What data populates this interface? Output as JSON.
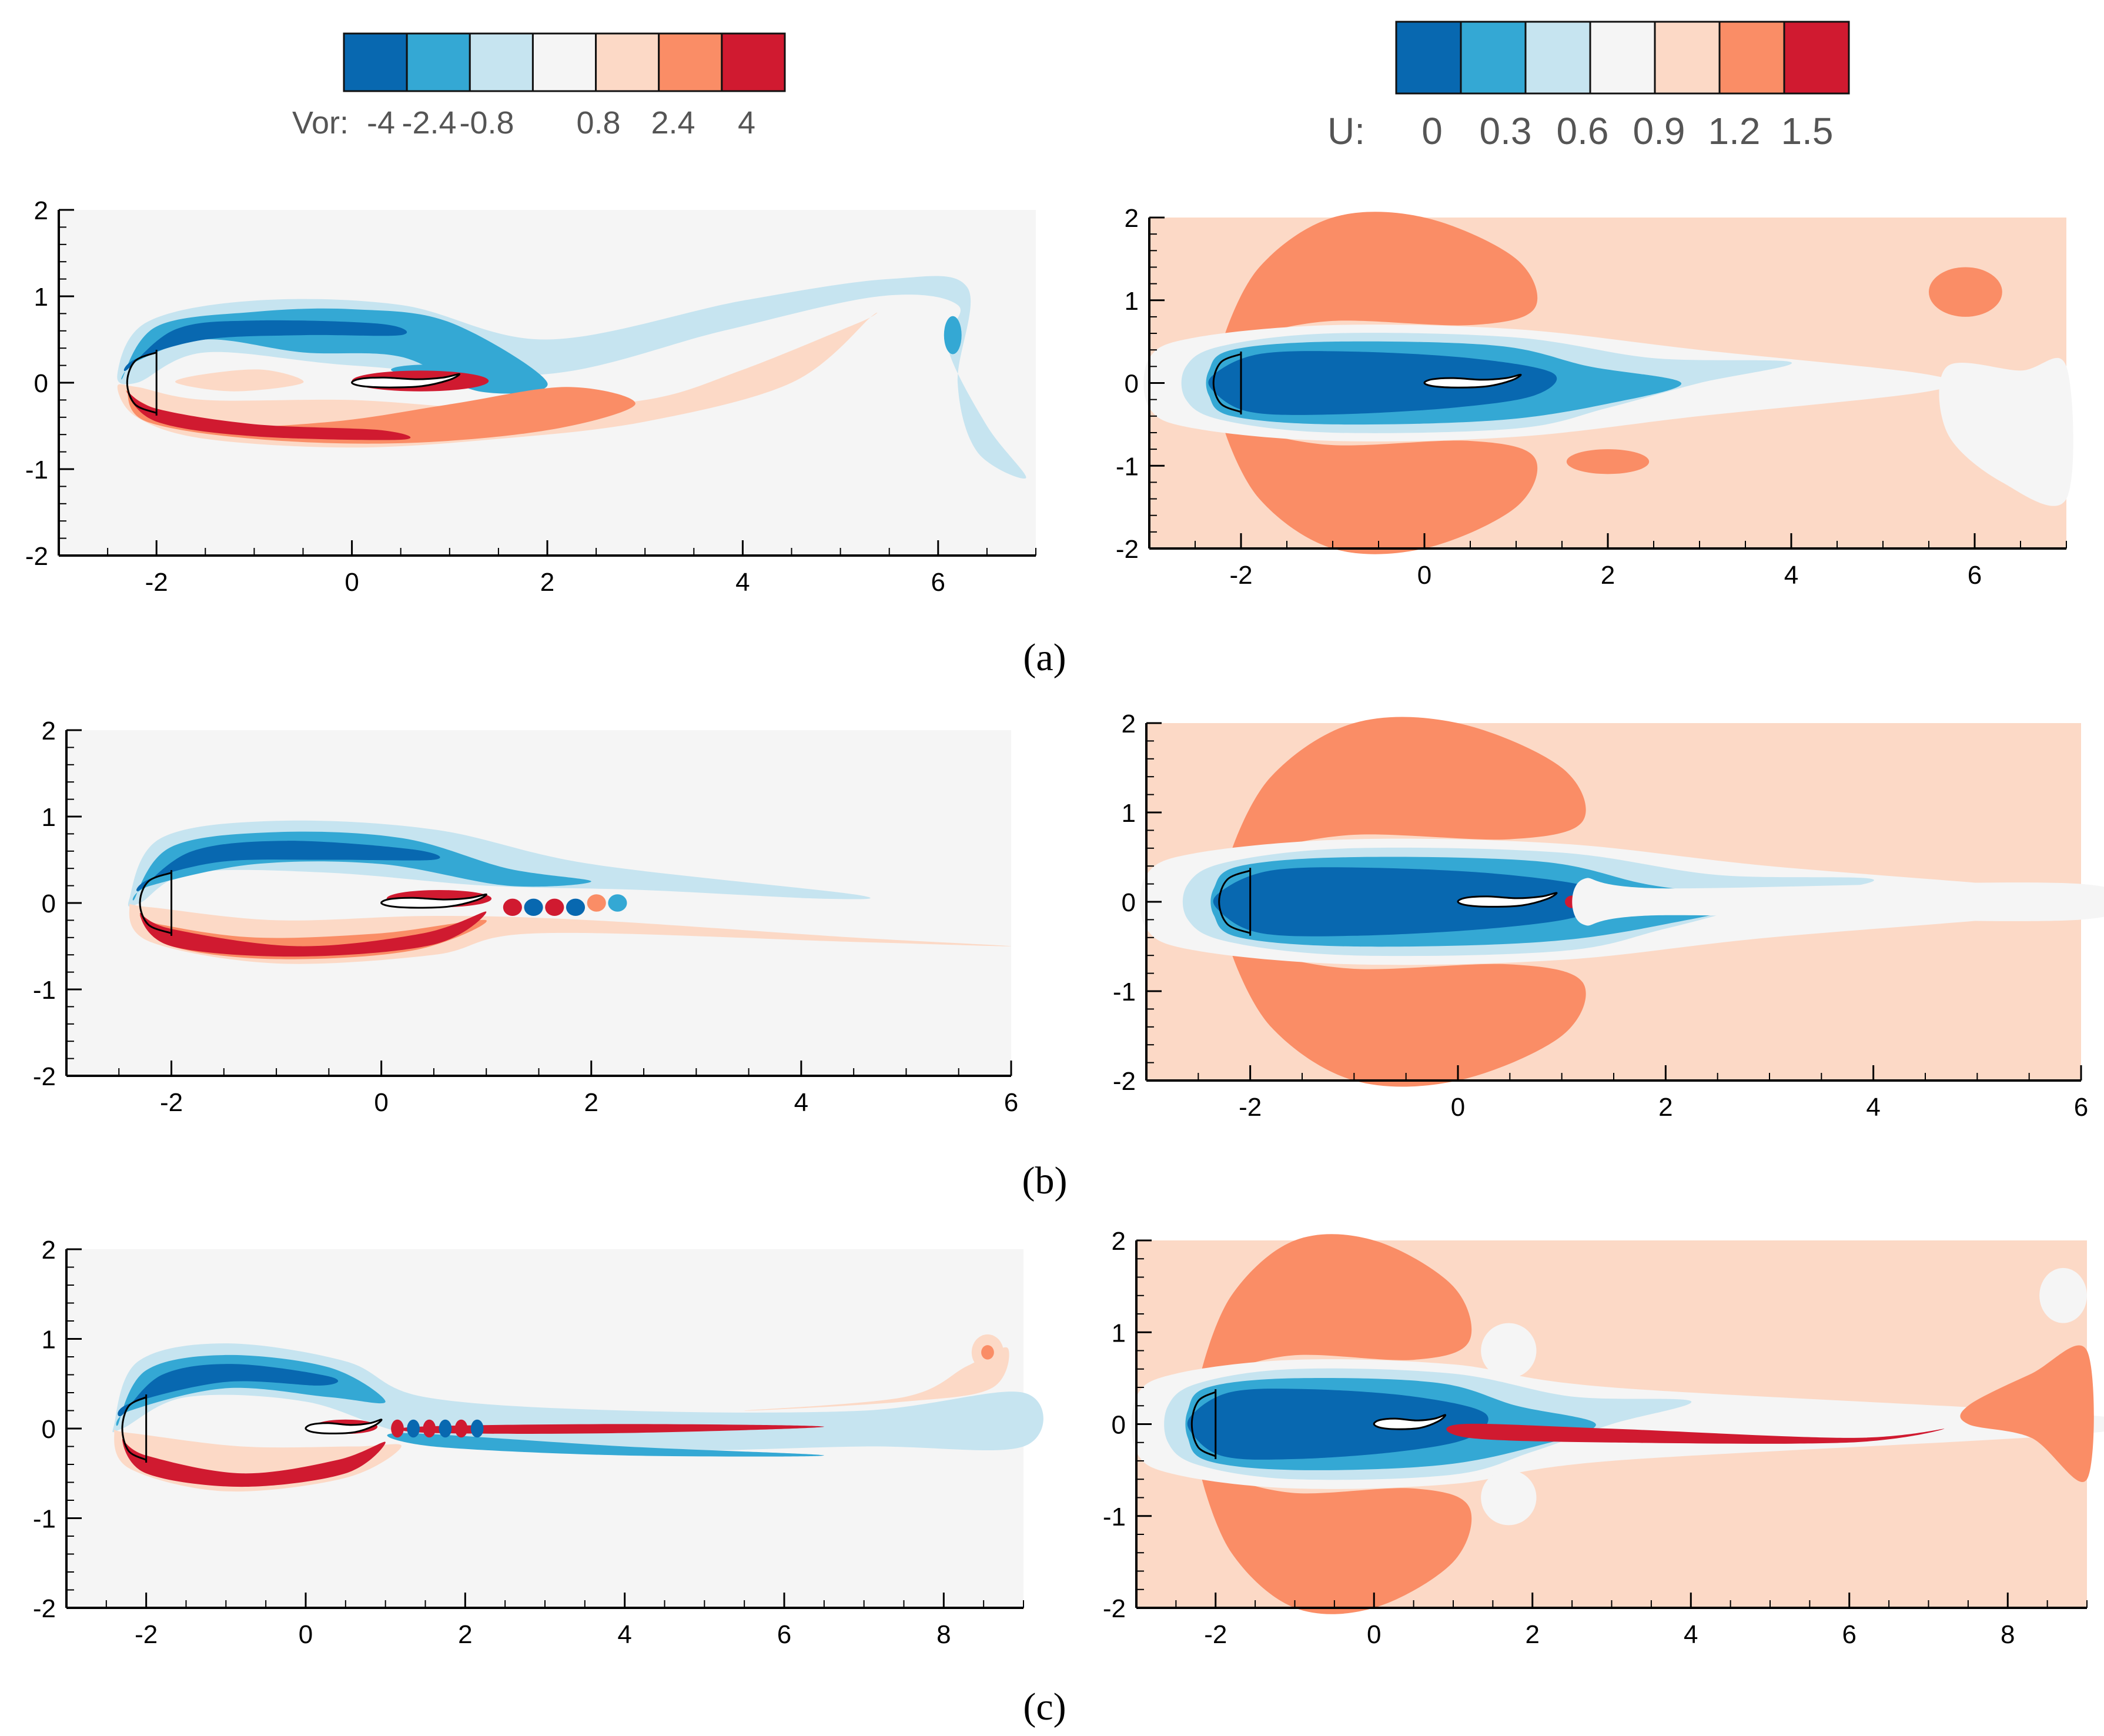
{
  "chart_data": {
    "type": "contour",
    "colorbars": [
      {
        "name": "vorticity",
        "label": "Vor:",
        "colors": [
          "#0868b0",
          "#34a8d4",
          "#c6e4f0",
          "#f5f5f5",
          "#fcd9c6",
          "#fa8d66",
          "#d01a30"
        ],
        "ticks": [
          "-4",
          "-2.4",
          "-0.8",
          "0.8",
          "2.4",
          "4"
        ]
      },
      {
        "name": "velocity",
        "label": "U:",
        "colors": [
          "#0868b0",
          "#34a8d4",
          "#c6e4f0",
          "#f5f5f5",
          "#fcd9c6",
          "#fa8d66",
          "#d01a30"
        ],
        "ticks": [
          "0",
          "0.3",
          "0.6",
          "0.9",
          "1.2",
          "1.5"
        ]
      }
    ],
    "panels": [
      {
        "caption": "(a)",
        "case": "a",
        "vorticity": {
          "xlim": [
            -3,
            7
          ],
          "ylim": [
            -2,
            2
          ],
          "xticks": [
            "-2",
            "0",
            "2",
            "4",
            "6"
          ],
          "yticks": [
            "2",
            "1",
            "0",
            "-1",
            "-2"
          ]
        },
        "velocity": {
          "xlim": [
            -3,
            7
          ],
          "ylim": [
            -2,
            2
          ],
          "xticks": [
            "-2",
            "0",
            "2",
            "4",
            "6"
          ],
          "yticks": [
            "2",
            "1",
            "0",
            "-1",
            "-2"
          ]
        }
      },
      {
        "caption": "(b)",
        "case": "b",
        "vorticity": {
          "xlim": [
            -3,
            6
          ],
          "ylim": [
            -2,
            2
          ],
          "xticks": [
            "-2",
            "0",
            "2",
            "4",
            "6"
          ],
          "yticks": [
            "2",
            "1",
            "0",
            "-1",
            "-2"
          ]
        },
        "velocity": {
          "xlim": [
            -3,
            6
          ],
          "ylim": [
            -2,
            2
          ],
          "xticks": [
            "-2",
            "0",
            "2",
            "4",
            "6"
          ],
          "yticks": [
            "2",
            "1",
            "0",
            "-1",
            "-2"
          ]
        }
      },
      {
        "caption": "(c)",
        "case": "c",
        "vorticity": {
          "xlim": [
            -3,
            9
          ],
          "ylim": [
            -2,
            2
          ],
          "xticks": [
            "-2",
            "0",
            "2",
            "4",
            "6",
            "8"
          ],
          "yticks": [
            "2",
            "1",
            "0",
            "-1",
            "-2"
          ]
        },
        "velocity": {
          "xlim": [
            -3,
            9
          ],
          "ylim": [
            -2,
            2
          ],
          "xticks": [
            "-2",
            "0",
            "2",
            "4",
            "6",
            "8"
          ],
          "yticks": [
            "2",
            "1",
            "0",
            "-1",
            "-2"
          ]
        }
      }
    ]
  }
}
